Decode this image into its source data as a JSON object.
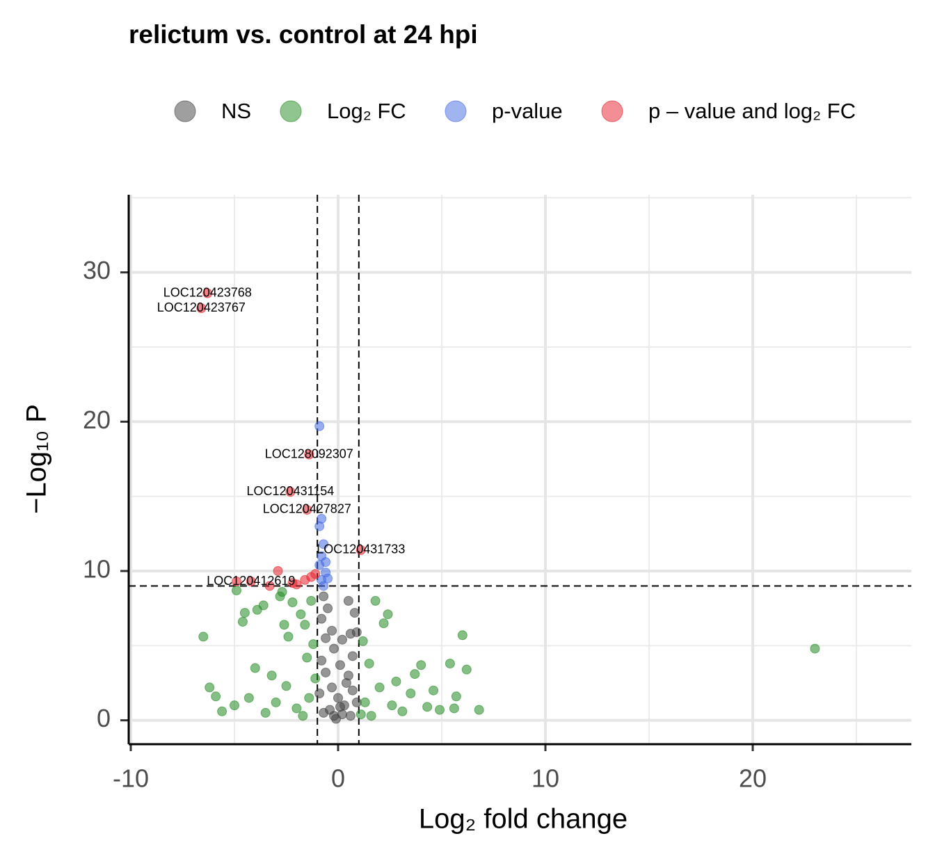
{
  "chart_data": {
    "type": "scatter",
    "title": "relictum vs. control at 24 hpi",
    "x_label": "Log₂ fold change",
    "y_label": "−Log₁₀ P",
    "xlim": [
      -10.1,
      27.65
    ],
    "ylim": [
      -1.6,
      35.2
    ],
    "xticks": [
      -10,
      0,
      10,
      20
    ],
    "yticks": [
      0,
      10,
      20,
      30
    ],
    "grid": true,
    "minor_grid": true,
    "fc_cutoff": 1,
    "p_cutoff": 9,
    "legend_position": "top",
    "series": [
      {
        "name": "NS",
        "color": "#404040",
        "x": [
          -0.8,
          -0.7,
          -0.5,
          -0.3,
          -0.2,
          0.1,
          0.5,
          0.8,
          0.6,
          0.7,
          0.4,
          -0.6,
          -0.9,
          0.9,
          0.2,
          -0.1,
          0.3,
          -0.4,
          0.6,
          -0.7,
          -0.3,
          0.2,
          -0.6,
          0.5,
          0.9,
          -0.8,
          0.0,
          0.1,
          -0.2,
          0.7
        ],
        "values": [
          6.8,
          8.3,
          7.5,
          6.0,
          4.8,
          3.7,
          8.0,
          7.2,
          5.8,
          4.3,
          2.5,
          3.2,
          1.8,
          1.2,
          0.4,
          0.1,
          1.0,
          0.7,
          0.3,
          0.5,
          2.2,
          5.4,
          5.5,
          3.0,
          5.9,
          4.0,
          1.5,
          0.9,
          0.3,
          2.0
        ]
      },
      {
        "name": "Log₂ FC",
        "color": "#228b22",
        "x": [
          -6.5,
          -6.2,
          -5.9,
          -5.6,
          -4.9,
          -4.5,
          -4.6,
          -4.0,
          -3.9,
          -3.6,
          -2.8,
          -2.7,
          -2.6,
          -2.4,
          -2.2,
          -1.8,
          -1.6,
          -1.3,
          -1.2,
          23.0,
          6.0,
          6.2,
          6.8,
          5.6,
          5.4,
          5.7,
          4.9,
          4.6,
          4.0,
          3.7,
          2.8,
          2.4,
          2.2,
          1.8,
          2.6,
          3.1,
          2.0,
          1.5,
          1.3,
          -1.4,
          -2.0,
          -3.0,
          -3.5,
          -4.3,
          -5.0,
          -1.1,
          1.1,
          1.6,
          -1.7,
          3.5,
          4.3,
          -2.5,
          -3.2,
          1.2,
          -1.5
        ],
        "values": [
          5.6,
          2.2,
          1.6,
          0.6,
          8.7,
          7.2,
          6.6,
          3.5,
          7.4,
          7.7,
          8.3,
          8.6,
          6.4,
          5.6,
          7.9,
          7.1,
          6.4,
          8.0,
          5.1,
          4.8,
          5.7,
          3.4,
          0.7,
          0.8,
          3.8,
          1.6,
          0.7,
          2.0,
          3.7,
          3.1,
          2.6,
          7.1,
          6.5,
          8.0,
          1.0,
          0.6,
          2.2,
          3.8,
          1.2,
          1.5,
          0.8,
          1.2,
          0.5,
          1.5,
          1.0,
          2.8,
          0.4,
          0.3,
          0.3,
          1.8,
          0.9,
          2.3,
          3.0,
          5.3,
          4.2
        ]
      },
      {
        "name": "p-value",
        "color": "#4169e1",
        "x": [
          -0.9,
          -0.8,
          -0.9,
          -0.7,
          -0.8,
          -0.9,
          -0.6,
          -0.6,
          -0.8,
          -0.7,
          -0.5
        ],
        "values": [
          19.7,
          13.5,
          13.0,
          11.8,
          11.0,
          10.4,
          10.6,
          9.9,
          9.4,
          9.0,
          9.5
        ]
      },
      {
        "name": "p – value and log₂ FC",
        "color": "#e8202a",
        "x": [
          -6.3,
          -6.6,
          -1.4,
          -2.3,
          -1.5,
          1.1,
          -4.2,
          -2.9,
          -4.9,
          -3.3,
          -2.2,
          -1.3,
          -1.1,
          -1.6,
          -2.0
        ],
        "values": [
          28.6,
          27.6,
          17.8,
          15.3,
          14.1,
          11.4,
          9.3,
          10.0,
          9.3,
          9.0,
          9.2,
          9.6,
          9.8,
          9.4,
          9.1
        ],
        "labels": [
          "LOC120423768",
          "LOC120423767",
          "LOC128092307",
          "LOC120431154",
          "LOC120427827",
          "LOC120431733",
          "LOC120412619",
          null,
          null,
          null,
          null,
          null,
          null,
          null,
          null
        ]
      }
    ]
  }
}
